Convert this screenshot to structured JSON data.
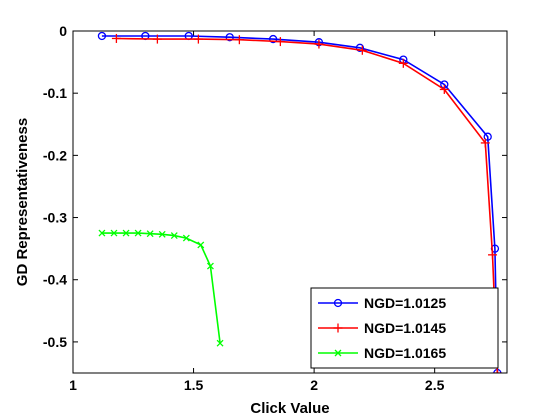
{
  "chart_data": {
    "type": "line",
    "title": "",
    "xlabel": "Click Value",
    "ylabel": "GD Representativeness",
    "xlim": [
      1,
      2.8
    ],
    "ylim": [
      -0.55,
      0
    ],
    "xticks": [
      1,
      1.5,
      2,
      2.5
    ],
    "xtick_labels": [
      "1",
      "1.5",
      "2",
      "2.5"
    ],
    "yticks": [
      0,
      -0.1,
      -0.2,
      -0.3,
      -0.4,
      -0.5
    ],
    "ytick_labels": [
      "0",
      "-0.1",
      "-0.2",
      "-0.3",
      "-0.4",
      "-0.5"
    ],
    "grid": false,
    "legend_position": "bottom-right",
    "series": [
      {
        "name": "NGD=1.0125",
        "color": "#0000ff",
        "marker": "circle",
        "x": [
          1.12,
          1.3,
          1.48,
          1.65,
          1.83,
          2.02,
          2.19,
          2.37,
          2.54,
          2.72,
          2.75,
          2.76
        ],
        "y": [
          -0.008,
          -0.008,
          -0.008,
          -0.01,
          -0.013,
          -0.018,
          -0.027,
          -0.046,
          -0.086,
          -0.17,
          -0.35,
          -0.55
        ]
      },
      {
        "name": "NGD=1.0145",
        "color": "#ff0000",
        "marker": "plus",
        "x": [
          1.18,
          1.35,
          1.52,
          1.69,
          1.86,
          2.02,
          2.2,
          2.37,
          2.54,
          2.71,
          2.74,
          2.76
        ],
        "y": [
          -0.012,
          -0.013,
          -0.013,
          -0.014,
          -0.017,
          -0.021,
          -0.031,
          -0.052,
          -0.094,
          -0.18,
          -0.36,
          -0.55
        ]
      },
      {
        "name": "NGD=1.0165",
        "color": "#00ff00",
        "marker": "x",
        "x": [
          1.12,
          1.17,
          1.22,
          1.27,
          1.32,
          1.37,
          1.42,
          1.47,
          1.53,
          1.57,
          1.61
        ],
        "y": [
          -0.325,
          -0.325,
          -0.325,
          -0.325,
          -0.326,
          -0.327,
          -0.329,
          -0.333,
          -0.344,
          -0.378,
          -0.502
        ]
      }
    ]
  }
}
